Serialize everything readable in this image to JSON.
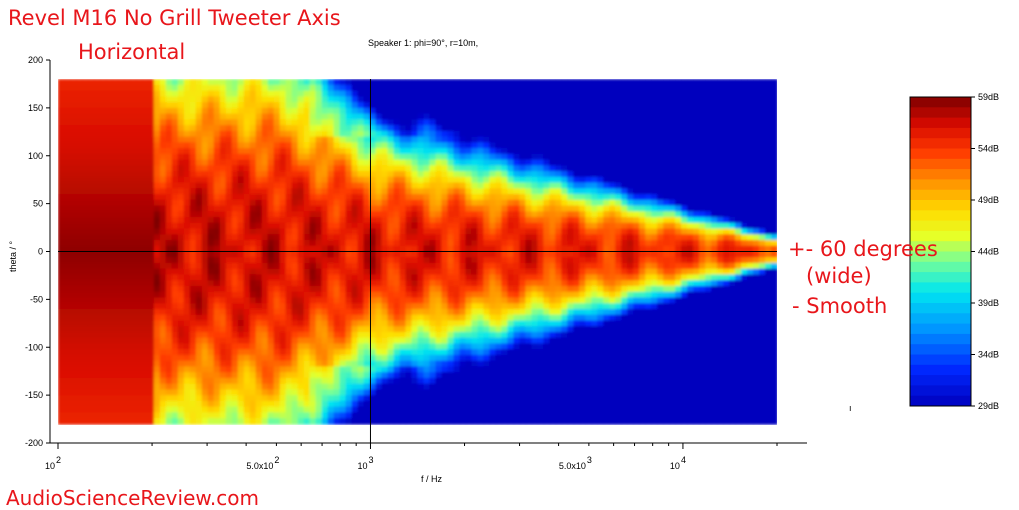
{
  "annotations": {
    "title_line1": "Revel M16 No Grill Tweeter Axis",
    "title_line2": "Horizontal",
    "note_line1": "+- 60 degrees",
    "note_line2": "(wide)",
    "note_line3": "- Smooth",
    "watermark": "AudioScienceReview.com",
    "stray_mark": "ı"
  },
  "chart_data": {
    "type": "heatmap",
    "subtitle": "Speaker 1: phi=90°, r=10m,",
    "xlabel": "f / Hz",
    "ylabel": "theta / °",
    "x_scale": "log",
    "xlim": [
      100,
      30000
    ],
    "data_x_range": [
      100,
      20000
    ],
    "ylim": [
      -200,
      200
    ],
    "data_y_range": [
      -180,
      180
    ],
    "x_ticks": [
      {
        "value": 100,
        "label": "10",
        "exp": "2"
      },
      {
        "value": 500,
        "label": "5.0x10",
        "exp": "2"
      },
      {
        "value": 1000,
        "label": "10",
        "exp": "3"
      },
      {
        "value": 5000,
        "label": "5.0x10",
        "exp": "3"
      },
      {
        "value": 10000,
        "label": "10",
        "exp": "4"
      }
    ],
    "y_ticks": [
      200,
      150,
      100,
      50,
      0,
      -50,
      -100,
      -150,
      -200
    ],
    "crosshair": {
      "x": 1000,
      "y": 0
    },
    "colorbar": {
      "min": 29,
      "max": 59,
      "unit": "dB",
      "labels": [
        "59dB",
        "54dB",
        "49dB",
        "44dB",
        "39dB",
        "34dB",
        "29dB"
      ],
      "values": [
        59,
        54,
        49,
        44,
        39,
        34,
        29
      ]
    },
    "contours_approx": [
      {
        "freq": 100,
        "half_width_deg_at_44dB": 180
      },
      {
        "freq": 500,
        "half_width_deg_at_44dB": 180
      },
      {
        "freq": 1000,
        "half_width_deg_at_44dB": 140
      },
      {
        "freq": 2000,
        "half_width_deg_at_44dB": 90
      },
      {
        "freq": 5000,
        "half_width_deg_at_44dB": 70
      },
      {
        "freq": 10000,
        "half_width_deg_at_44dB": 50
      },
      {
        "freq": 20000,
        "half_width_deg_at_44dB": 15
      }
    ],
    "grid": false
  },
  "colors": {
    "annotation": "#e8161b",
    "axis": "#000000",
    "background": "#ffffff"
  }
}
